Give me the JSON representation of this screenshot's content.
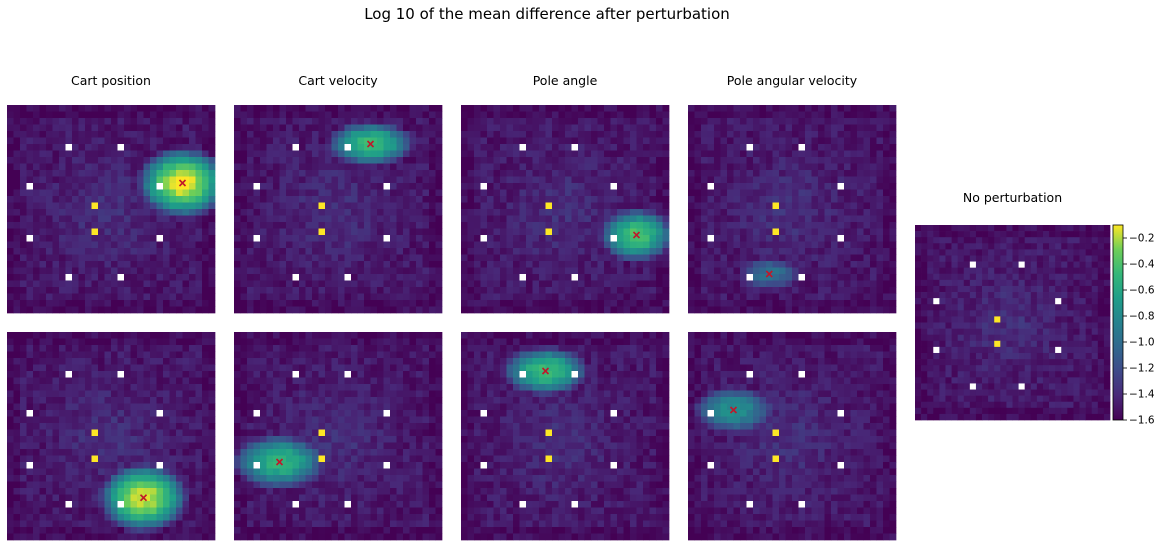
{
  "figure": {
    "title": "Log 10 of the mean difference after perturbation"
  },
  "chart_data": {
    "type": "heatmap",
    "title": "Log 10 of the mean difference after perturbation",
    "colormap": "viridis",
    "grid": false,
    "colorbar": {
      "vmin": -1.6,
      "vmax": -0.1,
      "ticks": [
        -0.2,
        -0.4,
        -0.6,
        -0.8,
        -1.0,
        -1.2,
        -1.4,
        -1.6
      ],
      "tick_labels": [
        "−0.2",
        "−0.4",
        "−0.6",
        "−0.8",
        "−1.0",
        "−1.2",
        "−1.4",
        "−1.6"
      ],
      "placement": "right of No perturbation panel"
    },
    "grid_cells": 32,
    "base_level": -1.5,
    "holes": [
      [
        9,
        6
      ],
      [
        17,
        6
      ],
      [
        3,
        12
      ],
      [
        23,
        12
      ],
      [
        3,
        20
      ],
      [
        23,
        20
      ],
      [
        9,
        26
      ],
      [
        17,
        26
      ]
    ],
    "markers": [
      [
        13,
        15
      ],
      [
        13,
        19
      ]
    ],
    "columns": [
      {
        "title": "Cart position"
      },
      {
        "title": "Cart velocity"
      },
      {
        "title": "Pole angle"
      },
      {
        "title": "Pole angular velocity"
      }
    ],
    "panels": [
      {
        "col": 0,
        "row": 0,
        "perturbation": [
          26.5,
          11.5
        ],
        "peak": -0.1,
        "spread": [
          4.5,
          3.5
        ]
      },
      {
        "col": 1,
        "row": 0,
        "perturbation": [
          20.5,
          5.5
        ],
        "peak": -0.45,
        "spread": [
          5.0,
          2.6
        ]
      },
      {
        "col": 2,
        "row": 0,
        "perturbation": [
          26.5,
          19.5
        ],
        "peak": -0.4,
        "spread": [
          4.2,
          3.0
        ]
      },
      {
        "col": 3,
        "row": 0,
        "perturbation": [
          12.0,
          25.5
        ],
        "peak": -0.95,
        "spread": [
          5.0,
          2.5
        ]
      },
      {
        "col": 0,
        "row": 1,
        "perturbation": [
          20.5,
          25.0
        ],
        "peak": -0.15,
        "spread": [
          4.5,
          3.5
        ]
      },
      {
        "col": 1,
        "row": 1,
        "perturbation": [
          6.5,
          19.5
        ],
        "peak": -0.5,
        "spread": [
          5.5,
          3.2
        ]
      },
      {
        "col": 2,
        "row": 1,
        "perturbation": [
          12.5,
          5.5
        ],
        "peak": -0.45,
        "spread": [
          5.0,
          2.8
        ]
      },
      {
        "col": 3,
        "row": 1,
        "perturbation": [
          6.5,
          11.5
        ],
        "peak": -0.75,
        "spread": [
          5.5,
          3.2
        ]
      }
    ],
    "no_perturbation": {
      "title": "No perturbation"
    }
  }
}
